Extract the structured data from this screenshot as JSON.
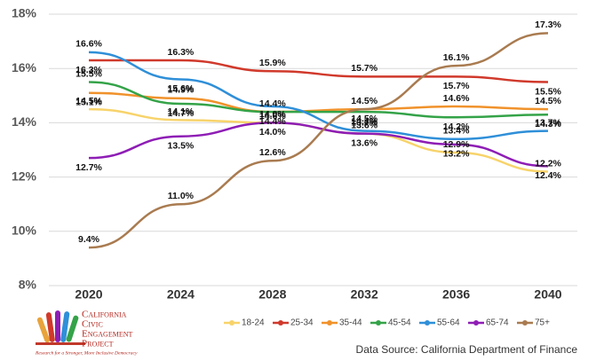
{
  "chart_data": {
    "type": "line",
    "categories": [
      "2020",
      "2024",
      "2028",
      "2032",
      "2036",
      "2040"
    ],
    "ylim": [
      8,
      18
    ],
    "yticks": [
      {
        "value": 8,
        "label": "8%"
      },
      {
        "value": 10,
        "label": "10%"
      },
      {
        "value": 12,
        "label": "12%"
      },
      {
        "value": 14,
        "label": "14%"
      },
      {
        "value": 16,
        "label": "16%"
      },
      {
        "value": 18,
        "label": "18%"
      }
    ],
    "grid": true,
    "legend": "bottom",
    "series": [
      {
        "name": "18-24",
        "color": "#f7d36a",
        "values": [
          14.5,
          14.1,
          14.0,
          13.6,
          12.9,
          12.2
        ],
        "value_labels": [
          "14.5%",
          "14.1%",
          "14.0%",
          "13.6%",
          "12.9%",
          "12.2%"
        ]
      },
      {
        "name": "25-34",
        "color": "#d0392b",
        "values": [
          16.3,
          16.3,
          15.9,
          15.7,
          15.7,
          15.5
        ],
        "value_labels": [
          "16.3%",
          "16.3%",
          "15.9%",
          "15.7%",
          "15.7%",
          "15.5%"
        ]
      },
      {
        "name": "35-44",
        "color": "#f0922b",
        "values": [
          15.1,
          14.9,
          14.4,
          14.5,
          14.6,
          14.5
        ],
        "value_labels": [
          "15.1%",
          "14.9%",
          "14.4%",
          "14.5%",
          "14.6%",
          "14.5%"
        ]
      },
      {
        "name": "45-54",
        "color": "#34a348",
        "values": [
          15.5,
          14.7,
          14.4,
          14.4,
          14.2,
          14.3
        ],
        "value_labels": [
          "15.5%",
          "14.7%",
          "14.4%",
          "14.4%",
          "14.2%",
          "14.3%"
        ]
      },
      {
        "name": "55-64",
        "color": "#2f8fd8",
        "values": [
          16.6,
          15.6,
          14.6,
          13.7,
          13.4,
          13.7
        ],
        "value_labels": [
          "16.6%",
          "15.6%",
          "14.6%",
          "13.7%",
          "13.4%",
          "13.7%"
        ]
      },
      {
        "name": "65-74",
        "color": "#8e1db5",
        "values": [
          12.7,
          13.5,
          14.0,
          13.6,
          13.2,
          12.4
        ],
        "value_labels": [
          "12.7%",
          "13.5%",
          "14.0%",
          "13.6%",
          "13.2%",
          "12.4%"
        ]
      },
      {
        "name": "75+",
        "color": "#a97b50",
        "values": [
          9.4,
          11.0,
          12.6,
          14.5,
          16.1,
          17.3
        ],
        "value_labels": [
          "9.4%",
          "11.0%",
          "12.6%",
          "14.5%",
          "16.1%",
          "17.3%"
        ]
      }
    ],
    "source": "Data Source: California Department of Finance"
  },
  "logo": {
    "lines": [
      "California",
      "Civic",
      "Engagement",
      "Project"
    ],
    "tagline": "Research for a Stronger, More Inclusive Democracy"
  }
}
